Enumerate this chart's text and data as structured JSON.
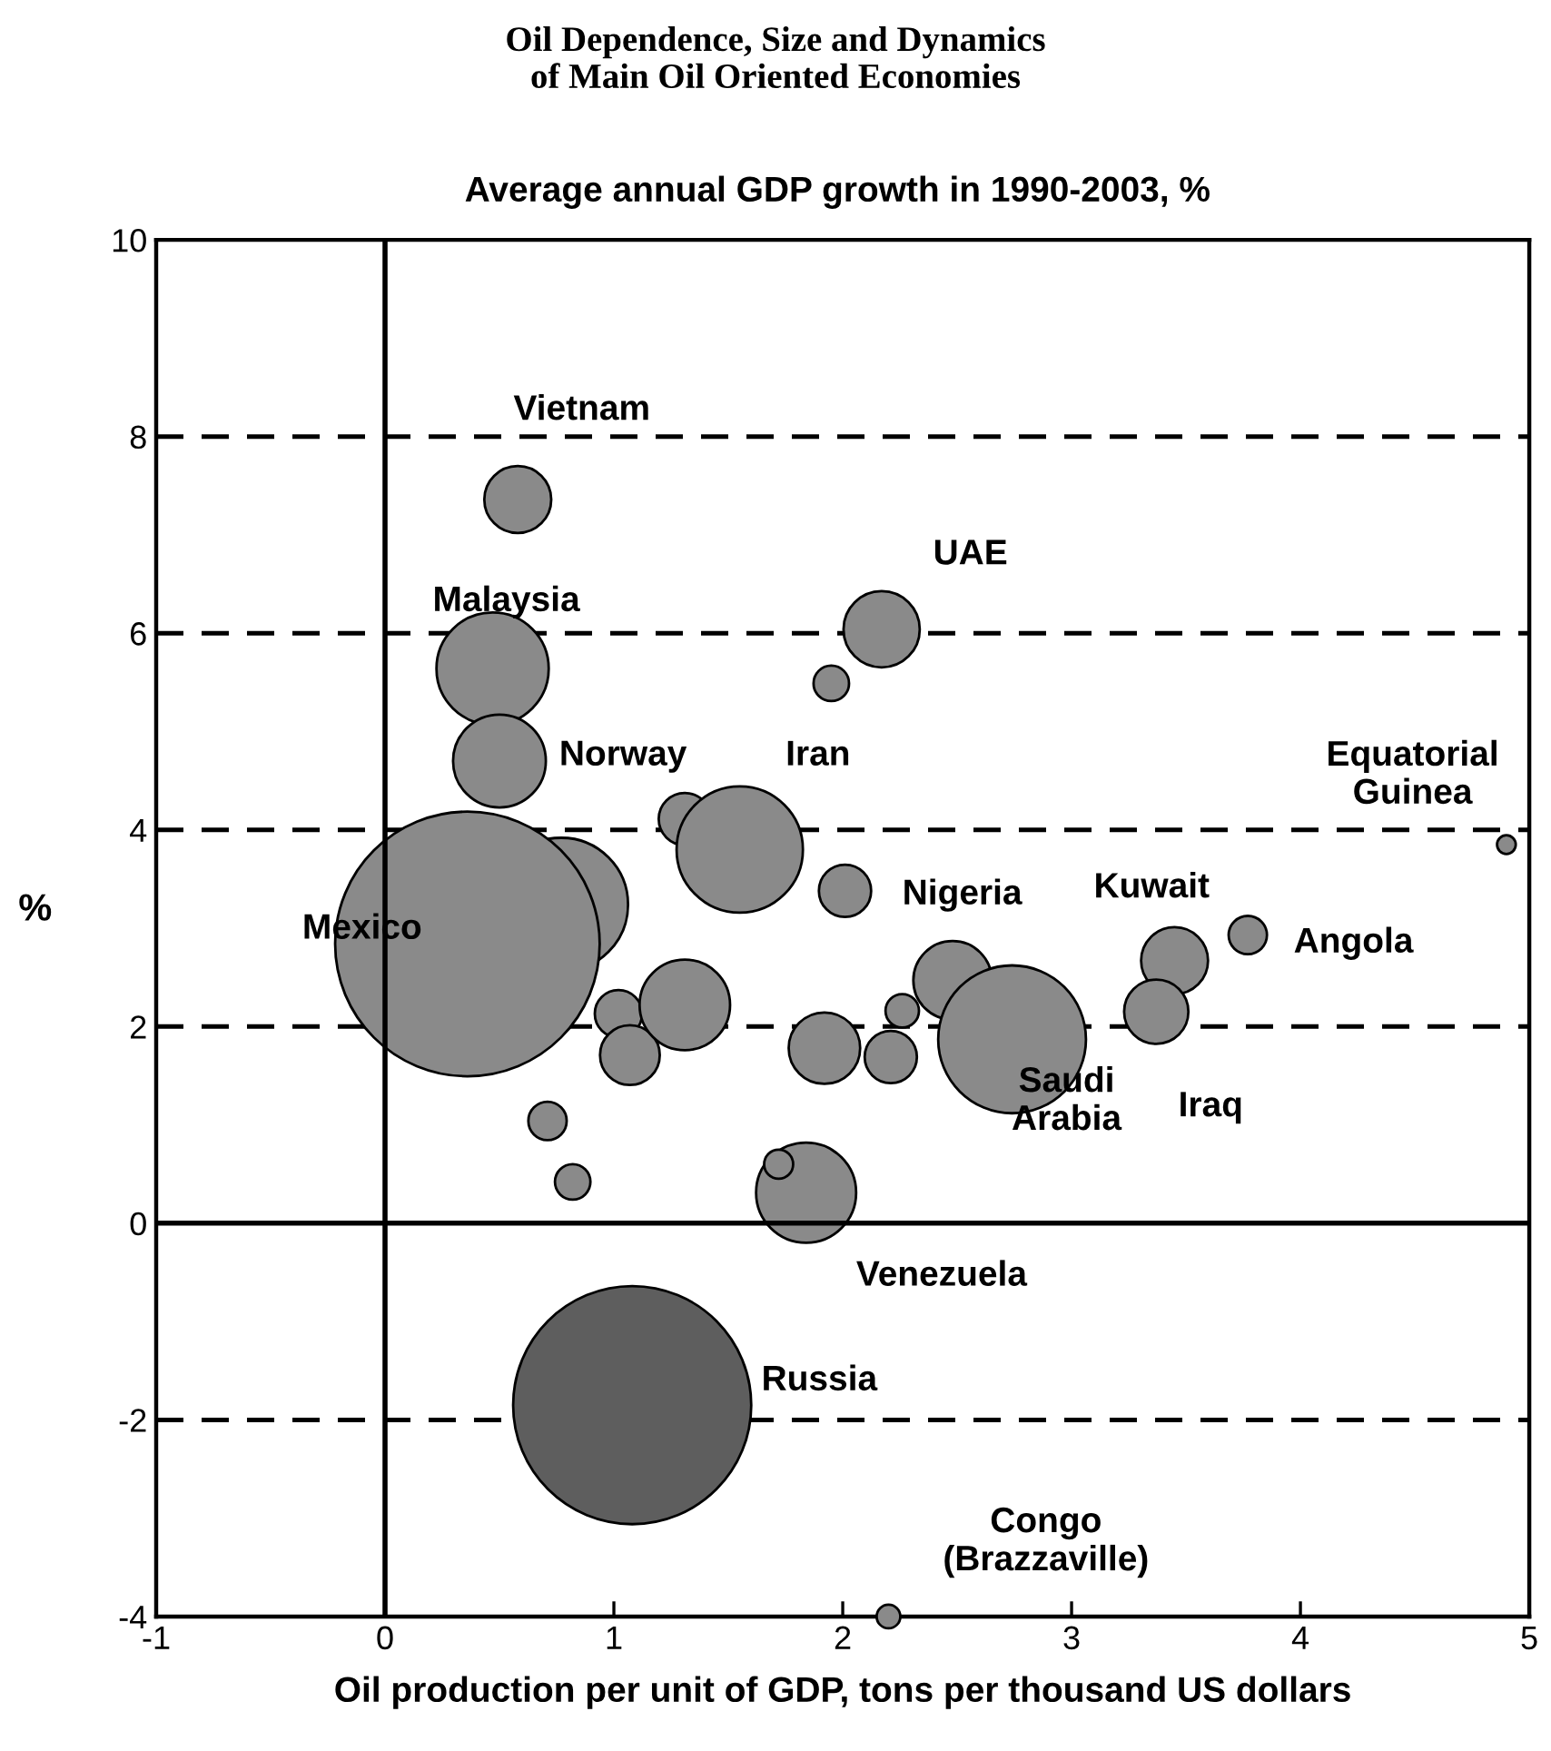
{
  "chart_data": {
    "type": "bubble",
    "title": "Oil Dependence, Size and Dynamics\nof Main Oil Oriented Economies",
    "subtitle": "Average annual GDP growth in 1990-2003, %",
    "xlabel": "Oil production per unit of GDP, tons per thousand US dollars",
    "ylabel": "%",
    "xlim": [
      -1,
      5
    ],
    "ylim": [
      -4,
      10
    ],
    "xticks": [
      -1,
      0,
      1,
      2,
      3,
      4,
      5
    ],
    "yticks": [
      -4,
      -2,
      0,
      2,
      4,
      6,
      8,
      10
    ],
    "grid": "y",
    "line_style": "dashed",
    "legend": false,
    "ref_lines": [
      {
        "axis": "x",
        "value": 0,
        "line_style": "solid",
        "color": "#000000"
      }
    ],
    "series": [
      {
        "color": "#8a8a8a",
        "x": [
          0.58,
          2.17,
          1.95,
          0.47,
          0.5,
          0.77,
          0.36,
          1.31,
          1.55,
          2.01,
          1.02,
          1.07,
          1.31,
          1.92,
          2.21,
          2.26,
          2.48,
          2.74,
          3.45,
          3.37,
          3.77,
          4.9,
          0.71,
          0.82,
          1.84,
          1.72,
          2.2
        ],
        "values": [
          7.36,
          6.04,
          5.49,
          5.64,
          4.7,
          3.24,
          2.84,
          4.11,
          3.8,
          3.38,
          2.13,
          1.71,
          2.22,
          1.78,
          1.69,
          2.16,
          2.47,
          1.87,
          2.67,
          2.15,
          2.93,
          3.85,
          1.04,
          0.42,
          0.31,
          0.6,
          -4.0
        ],
        "sizes": [
          0.064,
          0.083,
          0.018,
          0.18,
          0.123,
          0.255,
          1,
          0.039,
          0.228,
          0.039,
          0.032,
          0.051,
          0.117,
          0.073,
          0.039,
          0.016,
          0.088,
          0.312,
          0.064,
          0.059,
          0.021,
          0.005,
          0.021,
          0.018,
          0.143,
          0.012,
          0.008
        ]
      },
      {
        "color": "#5e5e5e",
        "x": [
          1.08
        ],
        "values": [
          -1.85
        ],
        "sizes": [
          0.81
        ]
      }
    ],
    "annotations": [
      "Vietnam",
      "UAE",
      "Malaysia",
      "Norway",
      "Iran",
      "Equatorial\nGuinea",
      "Mexico",
      "Nigeria",
      "Kuwait",
      "Angola",
      "Saudi\nArabia",
      "Iraq",
      "Venezuela",
      "Russia",
      "Congo\n(Brazzaville)"
    ]
  }
}
